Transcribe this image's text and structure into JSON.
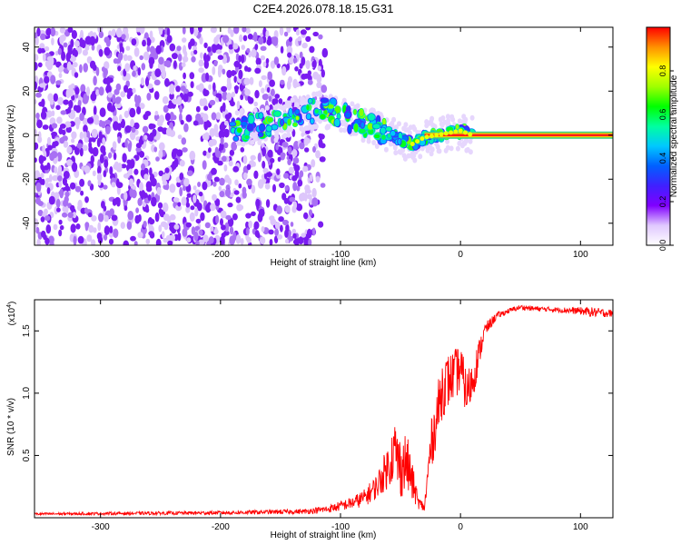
{
  "title": "C2E4.2026.078.18.15.G31",
  "chart_data": [
    {
      "type": "heatmap",
      "xlabel": "Height of straight line (km)",
      "ylabel": "Frequency (Hz)",
      "xlim": [
        -355,
        127
      ],
      "ylim": [
        -50,
        49
      ],
      "xticks": [
        -300,
        -200,
        -100,
        0,
        100
      ],
      "yticks": [
        -40,
        -20,
        0,
        20,
        40
      ],
      "colorbar": {
        "label": "Normalized spectral amplitude",
        "range": [
          0,
          1
        ],
        "ticks": [
          "0.0",
          "0.2",
          "0.4",
          "0.6",
          "0.8"
        ],
        "tick_values": [
          0.0,
          0.2,
          0.4,
          0.6,
          0.8
        ],
        "colors": [
          "#ffffff",
          "#e0c8ff",
          "#8000ff",
          "#4020ff",
          "#0060ff",
          "#00c8ff",
          "#00ffa0",
          "#00ff00",
          "#a0ff00",
          "#ffff00",
          "#ff9000",
          "#ff0000"
        ]
      },
      "noise_region_x": [
        -355,
        -110
      ],
      "signal_ridge": {
        "x": [
          -190,
          -170,
          -150,
          -130,
          -120,
          -110,
          -100,
          -90,
          -80,
          -70,
          -60,
          -50,
          -40,
          -30,
          -20,
          -10,
          0,
          10,
          127
        ],
        "freq": [
          3,
          4,
          6,
          10,
          12,
          11,
          9,
          7,
          5,
          3,
          1,
          -2,
          -4,
          -1,
          0,
          1,
          2,
          0,
          0
        ]
      },
      "flat_band_x": [
        -30,
        127
      ],
      "flat_band_freq": 0
    },
    {
      "type": "line",
      "xlabel": "Height of straight line (km)",
      "ylabel": "SNR (10 * v/v)",
      "scale_label": "(x10",
      "scale_exp": "4",
      "scale_suffix": ")",
      "xlim": [
        -355,
        127
      ],
      "ylim": [
        0.0,
        1.75
      ],
      "xticks": [
        -300,
        -200,
        -100,
        0,
        100
      ],
      "yticks": [
        0.5,
        1.0,
        1.5
      ],
      "ytick_labels": [
        "0.5",
        "1.0",
        "1.5"
      ],
      "color": "#ff0000",
      "x": [
        -355,
        -200,
        -130,
        -110,
        -90,
        -80,
        -70,
        -60,
        -55,
        -50,
        -45,
        -40,
        -35,
        -30,
        -25,
        -20,
        -15,
        -10,
        -5,
        0,
        5,
        10,
        15,
        20,
        30,
        40,
        50,
        60,
        80,
        100,
        110,
        127
      ],
      "y": [
        0.03,
        0.04,
        0.05,
        0.07,
        0.12,
        0.16,
        0.25,
        0.42,
        0.55,
        0.4,
        0.45,
        0.28,
        0.12,
        0.08,
        0.55,
        0.8,
        1.05,
        1.1,
        1.15,
        1.2,
        1.0,
        1.1,
        1.3,
        1.5,
        1.62,
        1.66,
        1.69,
        1.68,
        1.67,
        1.66,
        1.65,
        1.64
      ],
      "noise": [
        0.01,
        0.015,
        0.02,
        0.03,
        0.05,
        0.07,
        0.1,
        0.18,
        0.25,
        0.25,
        0.25,
        0.15,
        0.05,
        0.04,
        0.2,
        0.22,
        0.25,
        0.22,
        0.2,
        0.2,
        0.18,
        0.18,
        0.12,
        0.06,
        0.03,
        0.02,
        0.02,
        0.02,
        0.02,
        0.03,
        0.04,
        0.03
      ]
    }
  ]
}
